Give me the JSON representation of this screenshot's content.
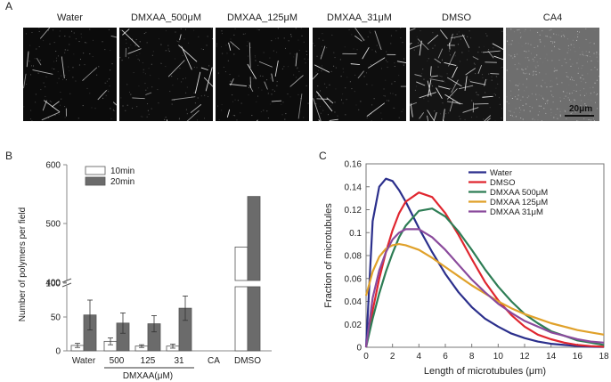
{
  "panel_a": {
    "letter": "A",
    "images": [
      {
        "label": "Water",
        "background": "#0b0b0b",
        "filament_density": 0.25
      },
      {
        "label": "DMXAA_500μM",
        "background": "#0d0d0d",
        "filament_density": 0.3
      },
      {
        "label": "DMXAA_125μM",
        "background": "#0c0c0c",
        "filament_density": 0.3
      },
      {
        "label": "DMXAA_31μM",
        "background": "#0e0e0e",
        "filament_density": 0.35
      },
      {
        "label": "DMSO",
        "background": "#141414",
        "filament_density": 1.0
      },
      {
        "label": "CA4",
        "background": "#6e6e6e",
        "filament_density": 0.0
      }
    ],
    "scale_bar_label": "20μm"
  },
  "panel_b": {
    "letter": "B",
    "chart_data": {
      "type": "bar",
      "ylabel": "Number of polymers per field",
      "y_ticks_lower": [
        "0",
        "50",
        "100"
      ],
      "y_ticks_upper": [
        "400",
        "500",
        "600"
      ],
      "axis_break": [
        100,
        400
      ],
      "categories": [
        "Water",
        "500",
        "125",
        "31",
        "CA",
        "DMSO"
      ],
      "group_label": "DMXAA(μM)",
      "series": [
        {
          "name": "10min",
          "color": "#ffffff",
          "values": [
            8,
            14,
            7,
            7,
            0,
            460
          ],
          "errors": [
            3,
            5,
            2,
            3,
            0,
            0
          ]
        },
        {
          "name": "20min",
          "color": "#6b6b6b",
          "values": [
            53,
            41,
            40,
            63,
            0,
            546
          ],
          "errors": [
            22,
            15,
            12,
            18,
            0,
            0
          ]
        }
      ]
    }
  },
  "panel_c": {
    "letter": "C",
    "chart_data": {
      "type": "line",
      "xlabel": "Length of microtubules (μm)",
      "ylabel": "Fraction of microtubules",
      "xlim": [
        0,
        18
      ],
      "ylim": [
        0,
        0.16
      ],
      "x_ticks": [
        "0",
        "2",
        "4",
        "6",
        "8",
        "10",
        "12",
        "14",
        "16",
        "18"
      ],
      "y_ticks": [
        "0",
        "0.02",
        "0.04",
        "0.06",
        "0.08",
        "0.1",
        "0.12",
        "0.14",
        "0.16"
      ],
      "x": [
        0,
        0.5,
        1,
        1.5,
        2,
        2.5,
        3,
        4,
        5,
        6,
        7,
        8,
        9,
        10,
        11,
        12,
        13,
        14,
        15,
        16,
        17,
        18
      ],
      "series": [
        {
          "name": "Water",
          "color": "#2b2f8c",
          "values": [
            0,
            0.11,
            0.14,
            0.147,
            0.145,
            0.137,
            0.127,
            0.104,
            0.083,
            0.064,
            0.048,
            0.035,
            0.025,
            0.018,
            0.012,
            0.008,
            0.005,
            0.003,
            0.002,
            0.001,
            0.0005,
            0.0002
          ]
        },
        {
          "name": "DMSO",
          "color": "#e0262f",
          "values": [
            0,
            0.032,
            0.06,
            0.083,
            0.102,
            0.117,
            0.127,
            0.135,
            0.131,
            0.117,
            0.098,
            0.077,
            0.057,
            0.041,
            0.028,
            0.018,
            0.011,
            0.007,
            0.004,
            0.002,
            0.001,
            0.0005
          ]
        },
        {
          "name": "DMXAA 500μM",
          "color": "#2e7d55",
          "values": [
            0,
            0.025,
            0.047,
            0.066,
            0.082,
            0.096,
            0.106,
            0.119,
            0.121,
            0.114,
            0.101,
            0.085,
            0.068,
            0.053,
            0.04,
            0.029,
            0.021,
            0.014,
            0.01,
            0.006,
            0.004,
            0.002
          ]
        },
        {
          "name": "DMXAA 125μM",
          "color": "#e0a12a",
          "values": [
            0.045,
            0.066,
            0.079,
            0.086,
            0.089,
            0.09,
            0.089,
            0.085,
            0.078,
            0.07,
            0.062,
            0.054,
            0.047,
            0.04,
            0.034,
            0.029,
            0.025,
            0.021,
            0.018,
            0.015,
            0.013,
            0.011
          ]
        },
        {
          "name": "DMXAA 31μM",
          "color": "#8a4a9c",
          "values": [
            0,
            0.043,
            0.067,
            0.083,
            0.094,
            0.1,
            0.103,
            0.103,
            0.096,
            0.085,
            0.072,
            0.059,
            0.048,
            0.038,
            0.03,
            0.023,
            0.018,
            0.013,
            0.01,
            0.007,
            0.005,
            0.004
          ]
        }
      ]
    }
  }
}
